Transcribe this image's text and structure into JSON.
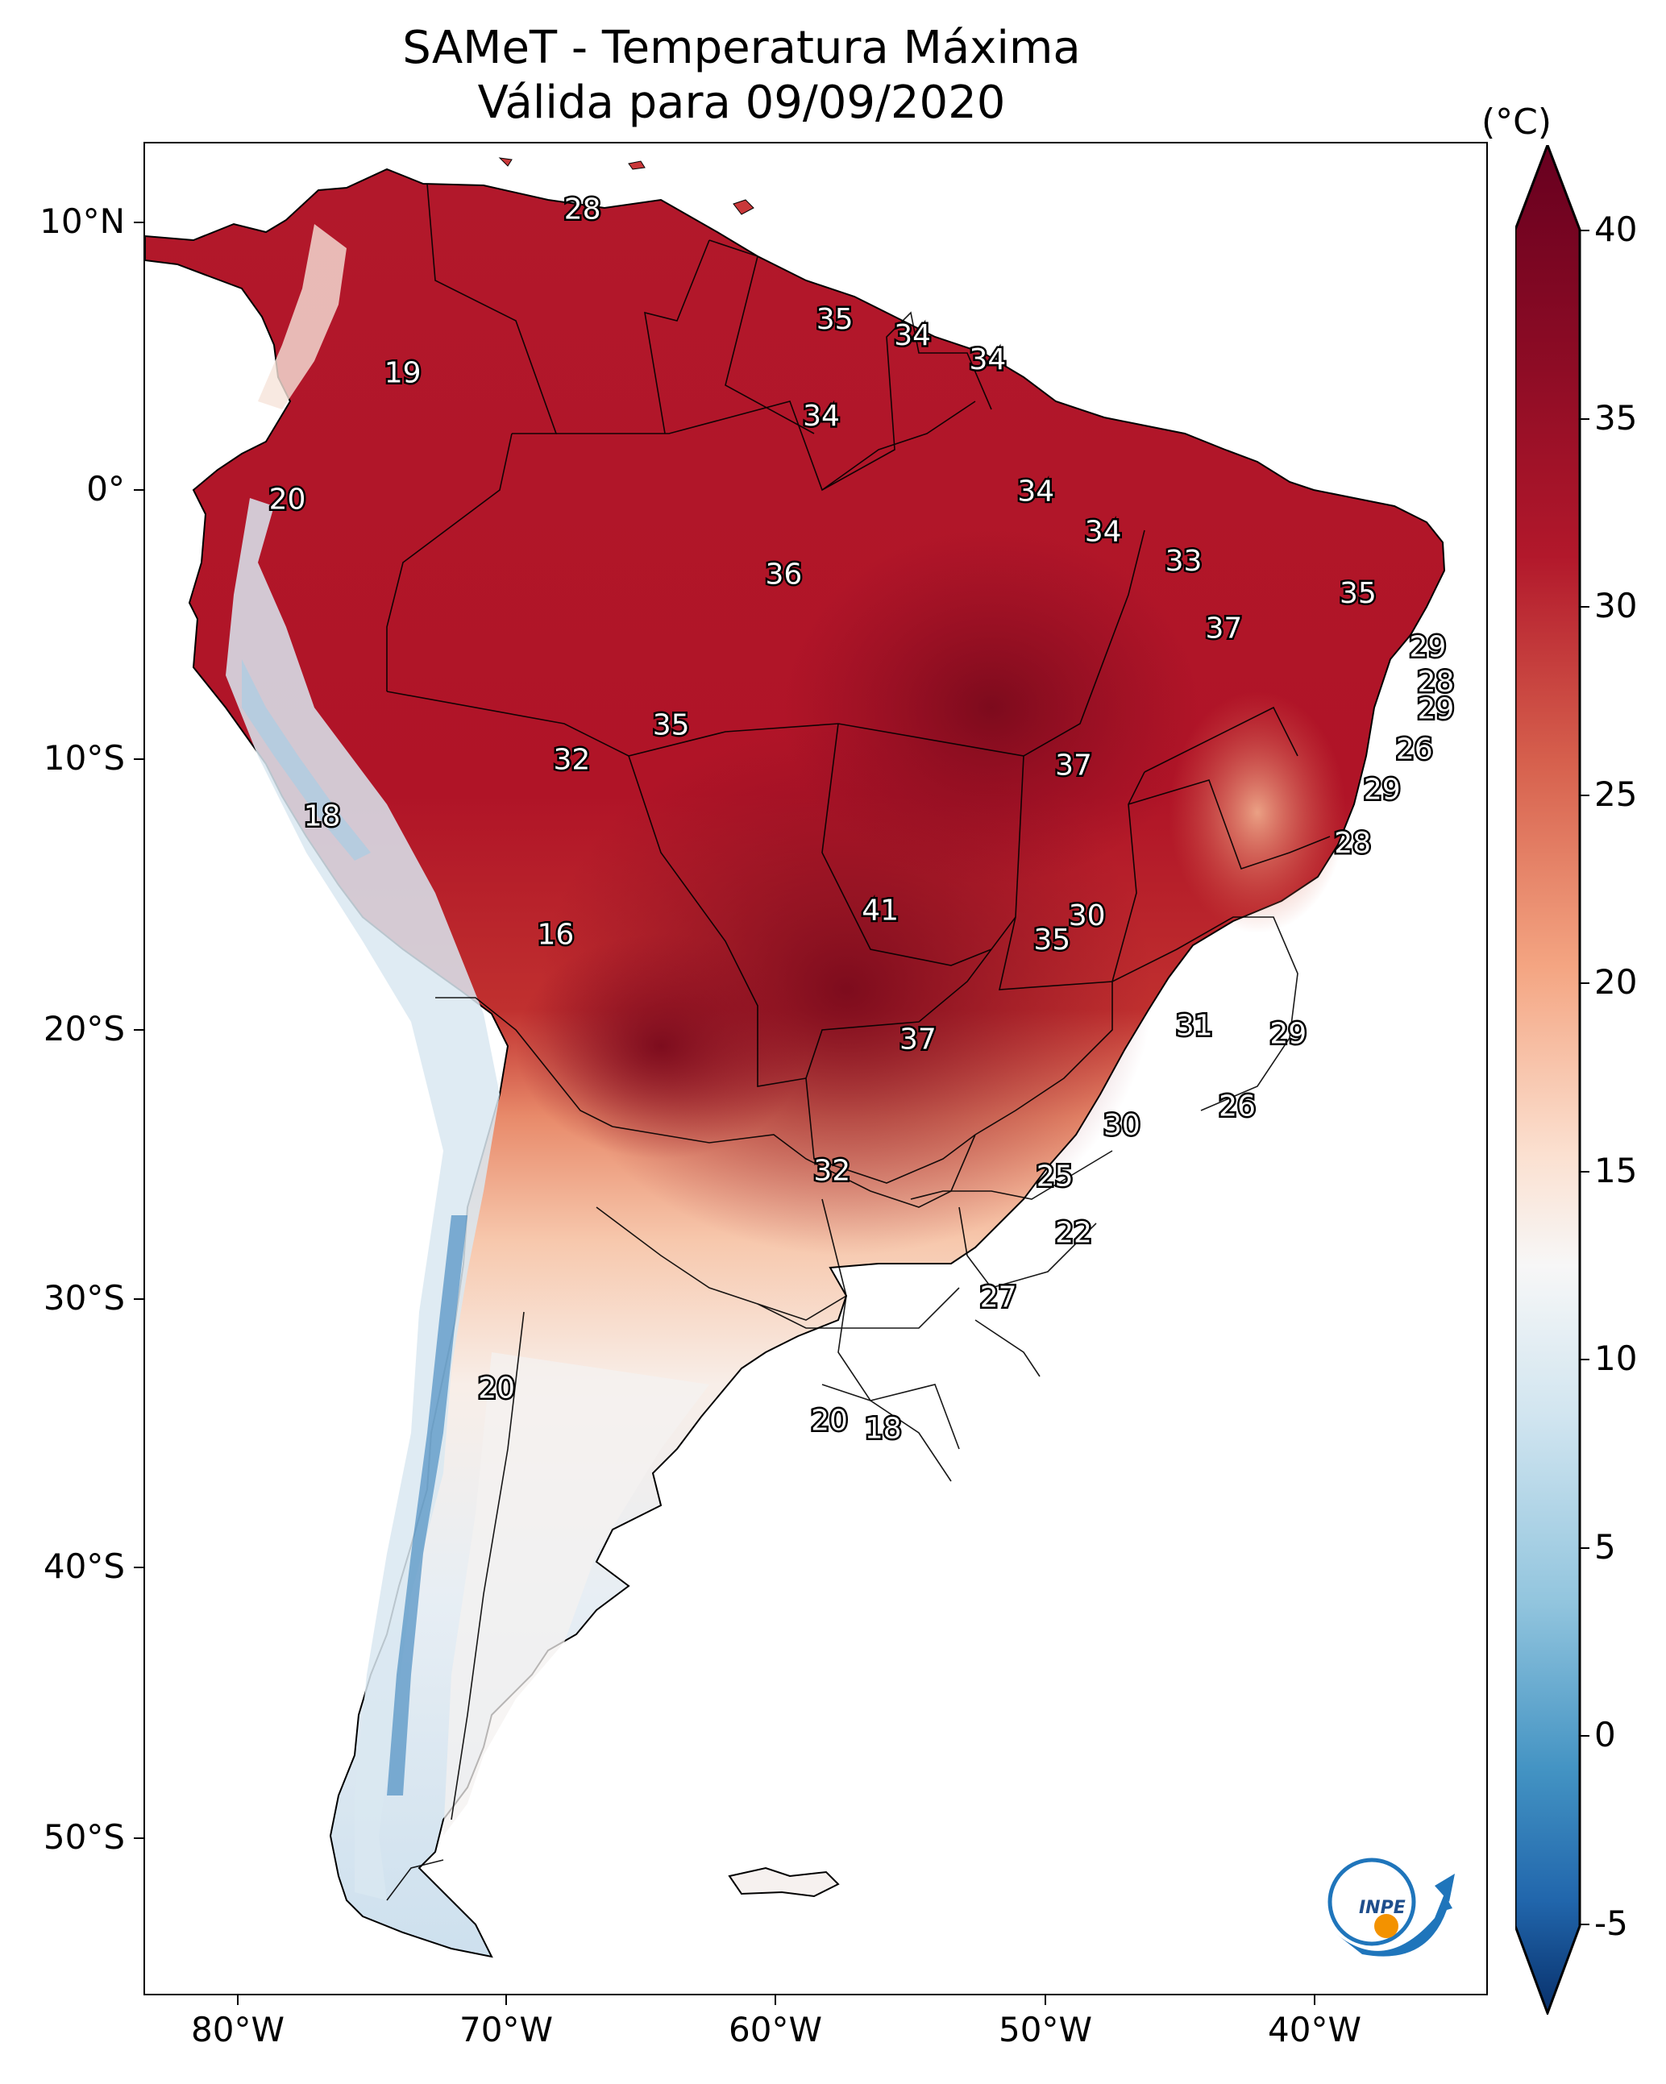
{
  "title": {
    "line1": "SAMeT - Temperatura Máxima",
    "line2": "Válida para 09/09/2020"
  },
  "axes": {
    "lat_labels": [
      "10°N",
      "0°",
      "10°S",
      "20°S",
      "30°S",
      "40°S",
      "50°S"
    ],
    "lon_labels": [
      "80°W",
      "70°W",
      "60°W",
      "50°W",
      "40°W"
    ]
  },
  "colorbar": {
    "unit": "(°C)",
    "ticks": [
      "40",
      "35",
      "30",
      "25",
      "20",
      "15",
      "10",
      "5",
      "0",
      "-5"
    ],
    "range": [
      -5,
      40
    ],
    "colors": {
      "min": "#08306b",
      "blue": "#2166ac",
      "lightblue": "#92c5de",
      "white": "#f7f7f7",
      "salmon": "#f4a582",
      "red": "#d6604d",
      "darkred": "#b2182b",
      "max": "#67001f"
    }
  },
  "station_values": [
    {
      "label": "28",
      "lon": -67.2,
      "lat": 10.5
    },
    {
      "label": "19",
      "lon": -73.9,
      "lat": 4.4
    },
    {
      "label": "35",
      "lon": -57.8,
      "lat": 6.4
    },
    {
      "label": "34",
      "lon": -54.9,
      "lat": 5.8
    },
    {
      "label": "34",
      "lon": -52.1,
      "lat": 4.9
    },
    {
      "label": "34",
      "lon": -58.3,
      "lat": 2.8
    },
    {
      "label": "20",
      "lon": -78.2,
      "lat": -0.3
    },
    {
      "label": "34",
      "lon": -50.3,
      "lat": 0.0
    },
    {
      "label": "34",
      "lon": -47.8,
      "lat": -1.5
    },
    {
      "label": "33",
      "lon": -44.8,
      "lat": -2.6
    },
    {
      "label": "36",
      "lon": -59.7,
      "lat": -3.1
    },
    {
      "label": "35",
      "lon": -38.3,
      "lat": -3.8
    },
    {
      "label": "37",
      "lon": -43.3,
      "lat": -5.1
    },
    {
      "label": "29",
      "lon": -35.7,
      "lat": -5.8
    },
    {
      "label": "28",
      "lon": -35.4,
      "lat": -7.1
    },
    {
      "label": "29",
      "lon": -35.4,
      "lat": -8.1
    },
    {
      "label": "35",
      "lon": -63.9,
      "lat": -8.7
    },
    {
      "label": "26",
      "lon": -36.2,
      "lat": -9.6
    },
    {
      "label": "32",
      "lon": -67.6,
      "lat": -10.0
    },
    {
      "label": "37",
      "lon": -48.9,
      "lat": -10.2
    },
    {
      "label": "29",
      "lon": -37.4,
      "lat": -11.1
    },
    {
      "label": "18",
      "lon": -76.9,
      "lat": -12.1
    },
    {
      "label": "28",
      "lon": -38.5,
      "lat": -13.1
    },
    {
      "label": "41",
      "lon": -56.1,
      "lat": -15.6
    },
    {
      "label": "30",
      "lon": -48.4,
      "lat": -15.8
    },
    {
      "label": "16",
      "lon": -68.2,
      "lat": -16.5
    },
    {
      "label": "35",
      "lon": -49.7,
      "lat": -16.7
    },
    {
      "label": "31",
      "lon": -44.4,
      "lat": -19.9
    },
    {
      "label": "37",
      "lon": -54.7,
      "lat": -20.4
    },
    {
      "label": "29",
      "lon": -40.9,
      "lat": -20.2
    },
    {
      "label": "26",
      "lon": -42.8,
      "lat": -22.9
    },
    {
      "label": "30",
      "lon": -47.1,
      "lat": -23.6
    },
    {
      "label": "32",
      "lon": -57.9,
      "lat": -25.3
    },
    {
      "label": "25",
      "lon": -49.6,
      "lat": -25.5
    },
    {
      "label": "22",
      "lon": -48.9,
      "lat": -27.6
    },
    {
      "label": "27",
      "lon": -51.7,
      "lat": -30.0
    },
    {
      "label": "20",
      "lon": -70.4,
      "lat": -33.4
    },
    {
      "label": "20",
      "lon": -58.0,
      "lat": -34.6
    },
    {
      "label": "18",
      "lon": -56.0,
      "lat": -34.9
    }
  ],
  "logo": {
    "name": "INPE",
    "text": "INPE"
  }
}
